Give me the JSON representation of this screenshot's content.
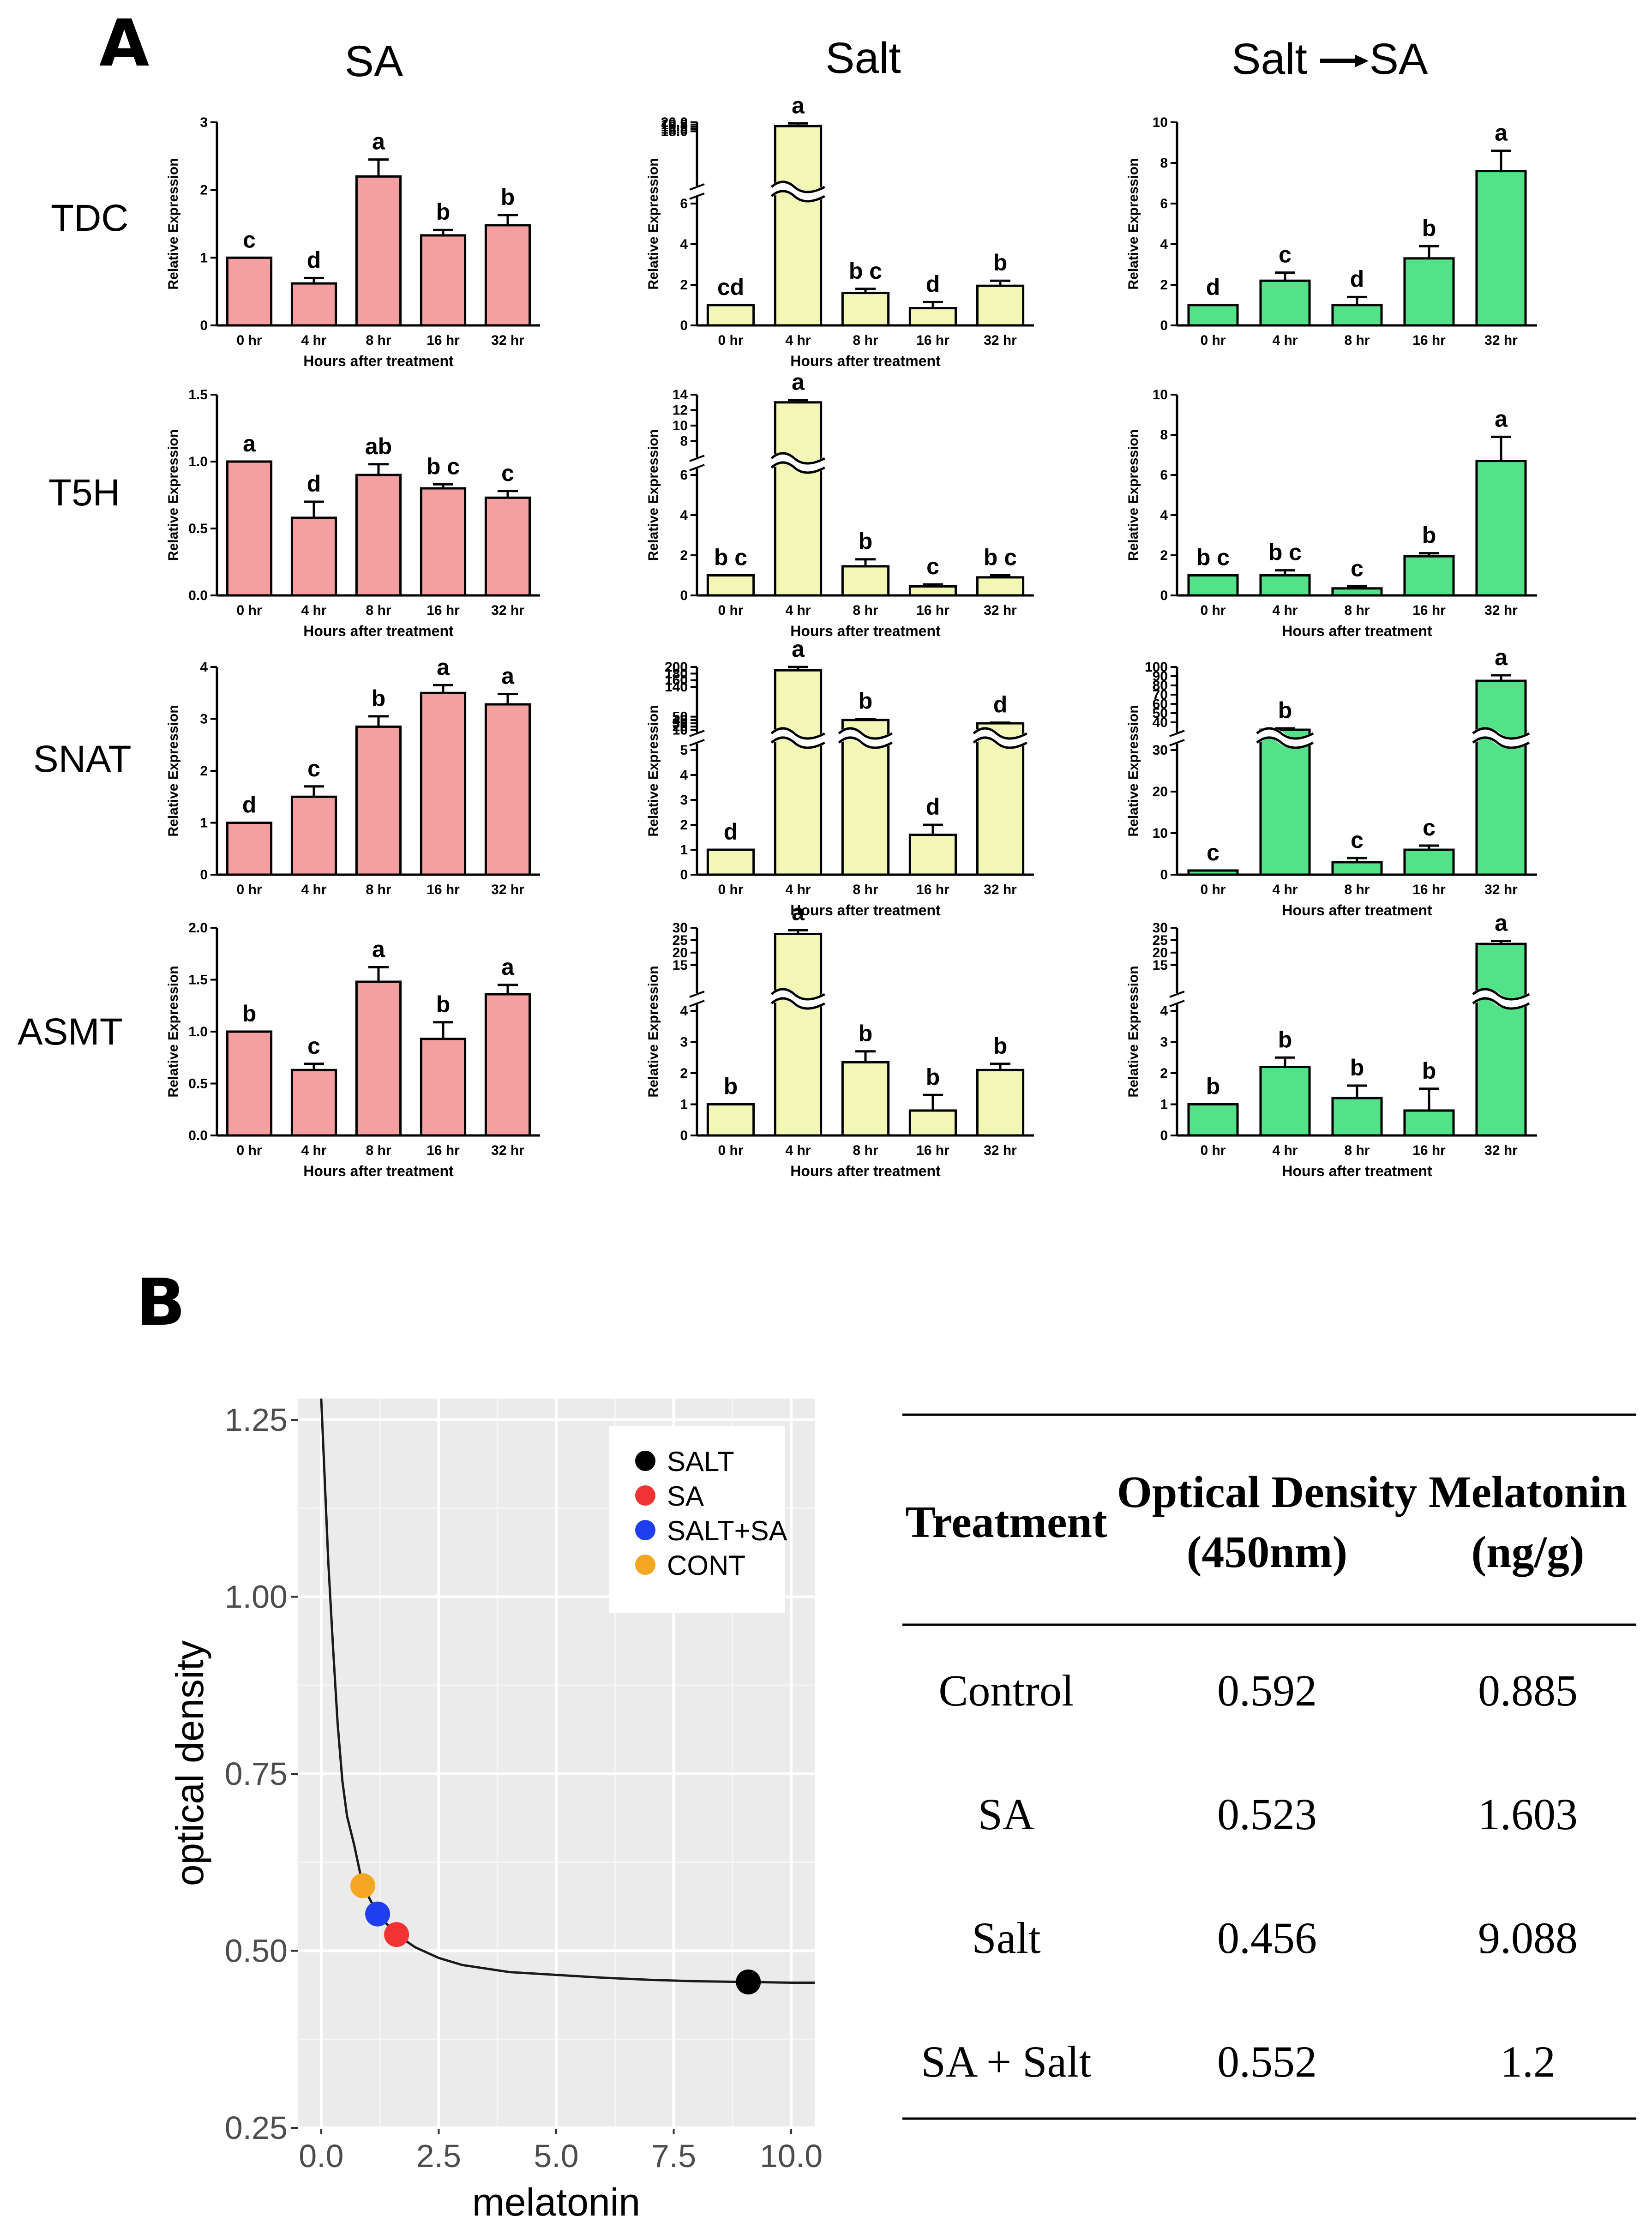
{
  "panel_a_label": "A",
  "panel_b_label": "B",
  "column_titles": [
    "SA",
    "Salt",
    "Salt",
    "SA"
  ],
  "gene_labels": [
    "TDC",
    "T5H",
    "SNAT",
    "ASMT"
  ],
  "colors": {
    "SA": "#f4a0a0",
    "Salt": "#f2f7b6",
    "Salt_SA": "#52e388",
    "axis": "#000000",
    "ggplot_bg": "#ebebeb"
  },
  "chart_data": [
    {
      "type": "bar",
      "panel": "A",
      "gene": "TDC",
      "treatment": "SA",
      "categories": [
        "0 hr",
        "4 hr",
        "8 hr",
        "16 hr",
        "32 hr"
      ],
      "values": [
        1.0,
        0.62,
        2.2,
        1.33,
        1.48
      ],
      "errors": [
        0,
        0.08,
        0.25,
        0.08,
        0.15
      ],
      "letters": [
        "c",
        "d",
        "a",
        "b",
        "b"
      ],
      "ylabel": "Relative Expression",
      "xlabel": "Hours after treatment",
      "ylim": [
        0,
        3
      ],
      "ticks": [
        "0",
        "1",
        "2",
        "3"
      ]
    },
    {
      "type": "bar",
      "panel": "A",
      "gene": "TDC",
      "treatment": "Salt",
      "categories": [
        "0 hr",
        "4 hr",
        "8 hr",
        "16 hr",
        "32 hr"
      ],
      "values": [
        1.0,
        19.15,
        1.6,
        0.85,
        1.95
      ],
      "errors": [
        0,
        0.6,
        0.2,
        0.3,
        0.25
      ],
      "letters": [
        "cd",
        "a",
        "b c",
        "d",
        "b"
      ],
      "ylabel": "Relative Expression",
      "xlabel": "Hours after treatment",
      "ylim": [
        0,
        20
      ],
      "broken_axis": true,
      "ticks": [
        "0",
        "2",
        "4",
        "6",
        "18.0",
        "18.5",
        "19.0",
        "19.5",
        "20.0"
      ]
    },
    {
      "type": "bar",
      "panel": "A",
      "gene": "TDC",
      "treatment": "Salt → SA",
      "categories": [
        "0 hr",
        "4 hr",
        "8 hr",
        "16 hr",
        "32 hr"
      ],
      "values": [
        1.0,
        2.2,
        1.0,
        3.3,
        7.6
      ],
      "errors": [
        0,
        0.4,
        0.4,
        0.6,
        1.0
      ],
      "letters": [
        "d",
        "c",
        "d",
        "b",
        "a"
      ],
      "ylabel": "Relative Expression",
      "xlabel": "",
      "ylim": [
        0,
        10
      ],
      "ticks": [
        "0",
        "2",
        "4",
        "6",
        "8",
        "10"
      ]
    },
    {
      "type": "bar",
      "panel": "A",
      "gene": "T5H",
      "treatment": "SA",
      "categories": [
        "0 hr",
        "4 hr",
        "8 hr",
        "16 hr",
        "32 hr"
      ],
      "values": [
        1.0,
        0.58,
        0.9,
        0.8,
        0.73
      ],
      "errors": [
        0,
        0.12,
        0.08,
        0.03,
        0.05
      ],
      "letters": [
        "a",
        "d",
        "ab",
        "b c",
        "c"
      ],
      "ylabel": "Relative Expression",
      "xlabel": "Hours after treatment",
      "ylim": [
        0,
        1.5
      ],
      "ticks": [
        "0.0",
        "0.5",
        "1.0",
        "1.5"
      ]
    },
    {
      "type": "bar",
      "panel": "A",
      "gene": "T5H",
      "treatment": "Salt",
      "categories": [
        "0 hr",
        "4 hr",
        "8 hr",
        "16 hr",
        "32 hr"
      ],
      "values": [
        1.0,
        13.0,
        1.45,
        0.45,
        0.9
      ],
      "errors": [
        0,
        0.3,
        0.35,
        0.1,
        0.1
      ],
      "letters": [
        "b c",
        "a",
        "b",
        "c",
        "b c"
      ],
      "ylabel": "Relative Expression",
      "xlabel": "Hours after treatment",
      "ylim": [
        0,
        14
      ],
      "broken_axis": true,
      "ticks": [
        "0",
        "2",
        "4",
        "6",
        "8",
        "10",
        "12",
        "14"
      ]
    },
    {
      "type": "bar",
      "panel": "A",
      "gene": "T5H",
      "treatment": "Salt → SA",
      "categories": [
        "0 hr",
        "4 hr",
        "8 hr",
        "16 hr",
        "32 hr"
      ],
      "values": [
        1.0,
        1.0,
        0.35,
        1.95,
        6.7
      ],
      "errors": [
        0,
        0.25,
        0.1,
        0.15,
        1.2
      ],
      "letters": [
        "b c",
        "b c",
        "c",
        "b",
        "a"
      ],
      "ylabel": "Relative Expression",
      "xlabel": "Hours after treatment",
      "ylim": [
        0,
        10
      ],
      "ticks": [
        "0",
        "2",
        "4",
        "6",
        "8",
        "10"
      ]
    },
    {
      "type": "bar",
      "panel": "A",
      "gene": "SNAT",
      "treatment": "SA",
      "categories": [
        "0 hr",
        "4 hr",
        "8 hr",
        "16 hr",
        "32 hr"
      ],
      "values": [
        1.0,
        1.5,
        2.85,
        3.5,
        3.28
      ],
      "errors": [
        0,
        0.2,
        0.2,
        0.15,
        0.2
      ],
      "letters": [
        "d",
        "c",
        "b",
        "a",
        "a"
      ],
      "ylabel": "Relative Expression",
      "xlabel": "",
      "ylim": [
        0,
        4
      ],
      "ticks": [
        "0",
        "1",
        "2",
        "3",
        "4"
      ]
    },
    {
      "type": "bar",
      "panel": "A",
      "gene": "SNAT",
      "treatment": "Salt",
      "categories": [
        "0 hr",
        "4 hr",
        "8 hr",
        "16 hr",
        "32 hr"
      ],
      "values": [
        1.0,
        190,
        40,
        1.6,
        30
      ],
      "errors": [
        0,
        10,
        3,
        0.4,
        2
      ],
      "letters": [
        "d",
        "a",
        "b",
        "d",
        "d"
      ],
      "ylabel": "Relative Expression",
      "xlabel": "Hours after treatment",
      "ylim": [
        0,
        200
      ],
      "broken_axis": true,
      "ticks": [
        "0",
        "1",
        "2",
        "3",
        "4",
        "5",
        "10",
        "20",
        "30",
        "40",
        "50",
        "140",
        "160",
        "180",
        "200"
      ]
    },
    {
      "type": "bar",
      "panel": "A",
      "gene": "SNAT",
      "treatment": "Salt → SA",
      "categories": [
        "0 hr",
        "4 hr",
        "8 hr",
        "16 hr",
        "32 hr"
      ],
      "values": [
        1.0,
        32,
        3.0,
        6.0,
        85
      ],
      "errors": [
        0,
        1.5,
        1,
        1,
        6
      ],
      "letters": [
        "c",
        "b",
        "c",
        "c",
        "a"
      ],
      "ylabel": "Relative Expression",
      "xlabel": "Hours after treatment",
      "ylim": [
        0,
        100
      ],
      "broken_axis": true,
      "ticks": [
        "0",
        "10",
        "20",
        "30",
        "40",
        "50",
        "60",
        "70",
        "80",
        "90",
        "100"
      ]
    },
    {
      "type": "bar",
      "panel": "A",
      "gene": "ASMT",
      "treatment": "SA",
      "categories": [
        "0 hr",
        "4 hr",
        "8 hr",
        "16 hr",
        "32 hr"
      ],
      "values": [
        1.0,
        0.63,
        1.48,
        0.93,
        1.36
      ],
      "errors": [
        0,
        0.06,
        0.14,
        0.16,
        0.09
      ],
      "letters": [
        "b",
        "c",
        "a",
        "b",
        "a"
      ],
      "ylabel": "Relative Expression",
      "xlabel": "Hours after treatment",
      "ylim": [
        0,
        2.0
      ],
      "ticks": [
        "0.0",
        "0.5",
        "1.0",
        "1.5",
        "2.0"
      ]
    },
    {
      "type": "bar",
      "panel": "A",
      "gene": "ASMT",
      "treatment": "Salt",
      "categories": [
        "0 hr",
        "4 hr",
        "8 hr",
        "16 hr",
        "32 hr"
      ],
      "values": [
        1.0,
        27.5,
        2.35,
        0.8,
        2.1
      ],
      "errors": [
        0,
        1.5,
        0.35,
        0.5,
        0.2
      ],
      "letters": [
        "b",
        "a",
        "b",
        "b",
        "b"
      ],
      "ylabel": "Relative Expression",
      "xlabel": "Hours after treatment",
      "ylim": [
        0,
        30
      ],
      "broken_axis": true,
      "ticks": [
        "0",
        "1",
        "2",
        "3",
        "4",
        "15",
        "20",
        "25",
        "30"
      ]
    },
    {
      "type": "bar",
      "panel": "A",
      "gene": "ASMT",
      "treatment": "Salt → SA",
      "categories": [
        "0 hr",
        "4 hr",
        "8 hr",
        "16 hr",
        "32 hr"
      ],
      "values": [
        1.0,
        2.2,
        1.2,
        0.8,
        23.5
      ],
      "errors": [
        0,
        0.3,
        0.4,
        0.7,
        1.2
      ],
      "letters": [
        "b",
        "b",
        "b",
        "b",
        "a"
      ],
      "ylabel": "Relative Expression",
      "xlabel": "Hours after treatment",
      "ylim": [
        0,
        30
      ],
      "broken_axis": true,
      "ticks": [
        "0",
        "1",
        "2",
        "3",
        "4",
        "15",
        "20",
        "25",
        "30"
      ]
    },
    {
      "type": "line",
      "panel": "B",
      "title": "",
      "xlabel": "melatonin",
      "ylabel": "optical density",
      "xlim": [
        -0.5,
        10.5
      ],
      "ylim": [
        0.25,
        1.28
      ],
      "xticks": [
        "0.0",
        "2.5",
        "5.0",
        "7.5",
        "10.0"
      ],
      "yticks": [
        "0.25",
        "0.50",
        "0.75",
        "1.00",
        "1.25"
      ],
      "curve": {
        "x": [
          0.0,
          0.15,
          0.25,
          0.35,
          0.45,
          0.55,
          0.7,
          0.885,
          1.2,
          1.603,
          2.0,
          2.5,
          3.0,
          4.0,
          5.0,
          6.0,
          7.0,
          8.0,
          9.088,
          10.0,
          10.5
        ],
        "y": [
          1.28,
          1.05,
          0.93,
          0.82,
          0.74,
          0.69,
          0.65,
          0.592,
          0.552,
          0.523,
          0.505,
          0.49,
          0.48,
          0.47,
          0.466,
          0.462,
          0.459,
          0.457,
          0.456,
          0.455,
          0.455
        ]
      },
      "points": [
        {
          "label": "CONT",
          "x": 0.885,
          "y": 0.592,
          "color": "#f5a623"
        },
        {
          "label": "SALT+SA",
          "x": 1.2,
          "y": 0.552,
          "color": "#1f3ef0"
        },
        {
          "label": "SA",
          "x": 1.603,
          "y": 0.523,
          "color": "#f23333"
        },
        {
          "label": "SALT",
          "x": 9.088,
          "y": 0.456,
          "color": "#000000"
        }
      ],
      "legend": [
        "SALT",
        "SA",
        "SALT+SA",
        "CONT"
      ],
      "legend_position": "top-right"
    },
    {
      "type": "table",
      "panel": "B",
      "columns": [
        "Treatment",
        "Optical Density",
        "(450nm)",
        "Melatonin",
        "(ng/g)"
      ],
      "rows": [
        [
          "Control",
          "0.592",
          "0.885"
        ],
        [
          "SA",
          "0.523",
          "1.603"
        ],
        [
          "Salt",
          "0.456",
          "9.088"
        ],
        [
          "SA + Salt",
          "0.552",
          "1.2"
        ]
      ]
    }
  ]
}
